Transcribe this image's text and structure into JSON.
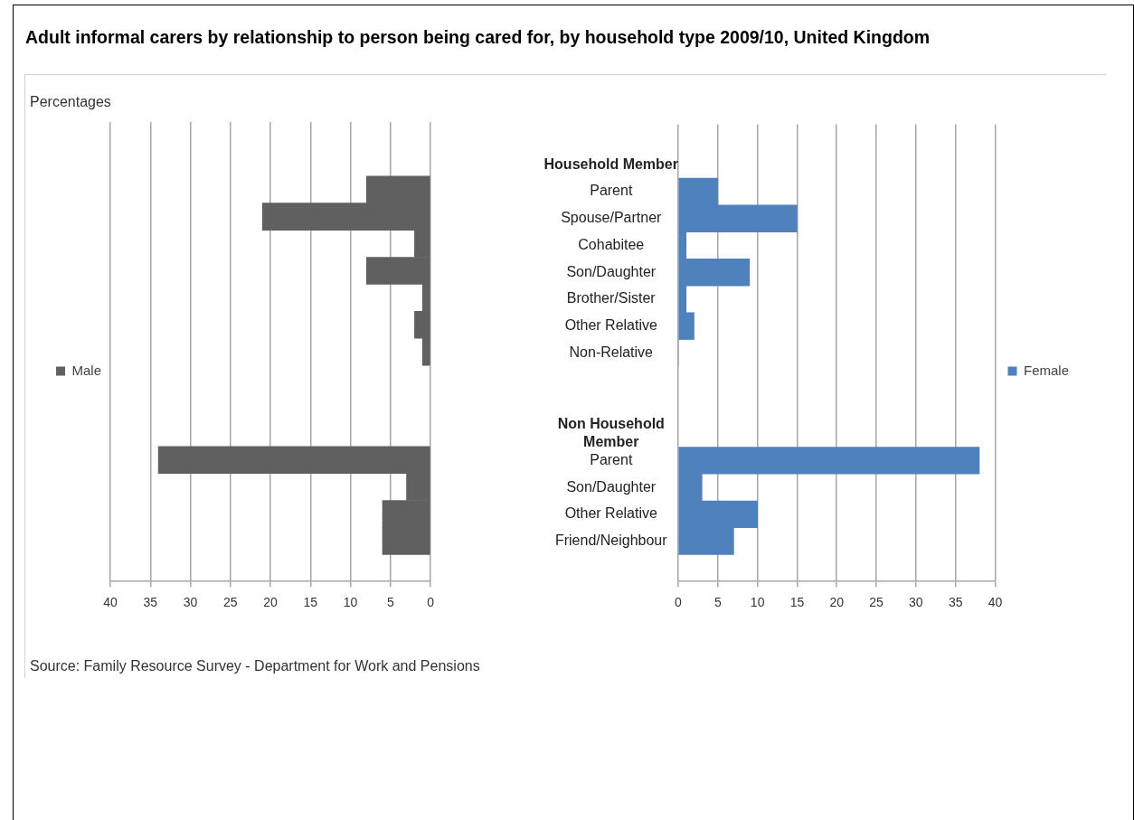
{
  "chart_data": [
    {
      "type": "bar",
      "orientation": "horizontal",
      "title": "Adult informal carers by relationship to person being cared for, by household type 2009/10, United Kingdom",
      "ylabel": "Percentages",
      "annotations": [
        "Source: Family Resource Survey - Department for Work and Pensions"
      ],
      "categories": [
        null,
        null,
        null,
        null,
        null,
        null,
        null,
        null,
        null,
        null,
        null,
        null,
        null,
        null,
        null,
        null,
        null
      ],
      "series": [
        {
          "name": "Male",
          "color": "#606060",
          "values": [
            null,
            null,
            8,
            21,
            2,
            8,
            1,
            2,
            1,
            null,
            null,
            null,
            34,
            3,
            6,
            6,
            null
          ]
        }
      ],
      "xlim": [
        40,
        0
      ],
      "xticks": [
        40,
        35,
        30,
        25,
        20,
        15,
        10,
        5,
        0
      ],
      "grid": "x",
      "legend": "left",
      "tick_labels": "x"
    },
    {
      "type": "bar",
      "orientation": "horizontal",
      "categories": [
        null,
        "Household Member",
        "Parent",
        "Spouse/Partner",
        "Cohabitee",
        "Son/Daughter",
        "Brother/Sister",
        "Other Relative",
        "Non-Relative",
        null,
        null,
        "Non Household Member",
        "Parent",
        "Son/Daughter",
        "Other Relative",
        "Friend/Neighbour",
        null
      ],
      "series": [
        {
          "name": "Female",
          "color": "#4f81bd",
          "values": [
            null,
            null,
            5,
            15,
            1,
            9,
            1,
            2,
            0,
            null,
            null,
            null,
            38,
            3,
            10,
            7,
            null
          ]
        }
      ],
      "xlim": [
        0,
        40
      ],
      "xticks": [
        0,
        5,
        10,
        15,
        20,
        25,
        30,
        35,
        40
      ],
      "grid": "x",
      "legend": "right"
    }
  ]
}
